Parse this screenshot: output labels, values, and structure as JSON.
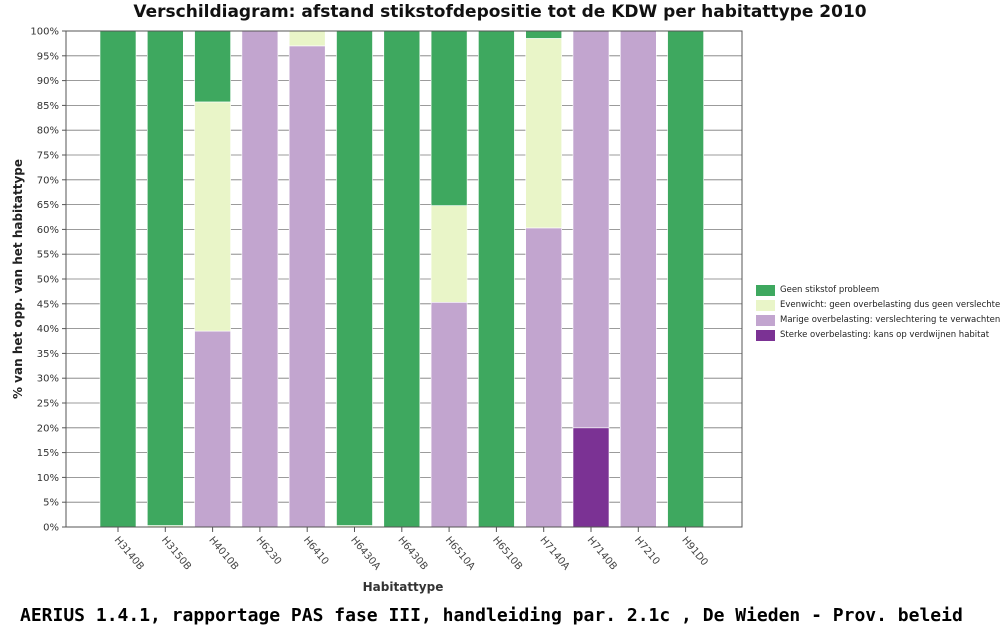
{
  "chart_data": {
    "type": "bar",
    "stacked": true,
    "title": "Verschildiagram: afstand stikstofdepositie tot de KDW per habitattype 2010",
    "xlabel": "Habitattype",
    "ylabel": "% van het opp. van het habitattype",
    "ylim": [
      0,
      100
    ],
    "yticks": [
      "0%",
      "5%",
      "10%",
      "15%",
      "20%",
      "25%",
      "30%",
      "35%",
      "40%",
      "45%",
      "50%",
      "55%",
      "60%",
      "65%",
      "70%",
      "75%",
      "80%",
      "85%",
      "90%",
      "95%",
      "100%"
    ],
    "categories": [
      "H3140B",
      "H3150B",
      "H4010B",
      "H6230",
      "H6410",
      "H6430A",
      "H6430B",
      "H6510A",
      "H6510B",
      "H7140A",
      "H7140B",
      "H7210",
      "H91D0"
    ],
    "series": [
      {
        "name": "Sterke overbelasting: kans op verdwijnen habitat",
        "color": "#7b3294",
        "values": [
          0,
          0,
          0,
          0,
          0,
          0,
          0,
          0,
          0,
          0,
          20,
          0,
          0
        ]
      },
      {
        "name": "Marige overbelasting: verslechtering te verwachten",
        "color": "#c2a5cf",
        "values": [
          0,
          0,
          39.5,
          100,
          97,
          0,
          0,
          45.3,
          0,
          60.3,
          80,
          100,
          0
        ]
      },
      {
        "name": "Evenwicht: geen overbelasting dus geen verslechtering",
        "color": "#e9f5c8",
        "values": [
          0,
          0.3,
          46.2,
          0,
          3,
          0.3,
          0,
          19.5,
          0,
          38.2,
          0,
          0,
          0
        ]
      },
      {
        "name": "Geen stikstof probleem",
        "color": "#3ea85f",
        "values": [
          100,
          99.7,
          14.3,
          0,
          0,
          99.7,
          100,
          35.2,
          100,
          1.5,
          0,
          0,
          100
        ]
      }
    ],
    "legend_position": "right",
    "grid": true
  },
  "caption": "AERIUS 1.4.1, rapportage PAS fase III,  handleiding par. 2.1c , De Wieden - Prov. beleid"
}
